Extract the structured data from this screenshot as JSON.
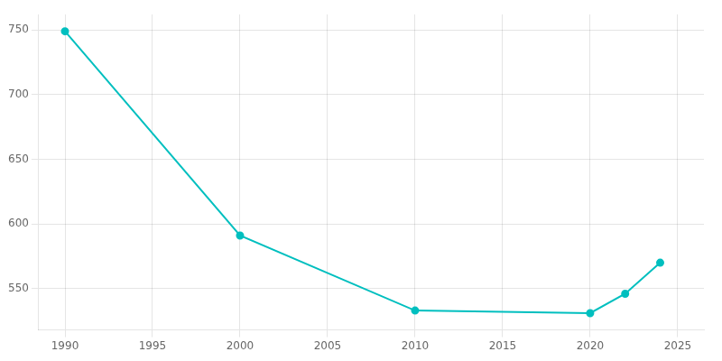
{
  "chart_data": {
    "type": "line",
    "x": [
      1990,
      2000,
      2010,
      2020,
      2022,
      2024
    ],
    "values": [
      749,
      591,
      533,
      531,
      546,
      570
    ],
    "color": "#00BFBF",
    "marker": "circle",
    "xlim": [
      1988.5,
      2026.5
    ],
    "ylim": [
      518,
      762
    ],
    "xticks": [
      1990,
      1995,
      2000,
      2005,
      2010,
      2015,
      2020,
      2025
    ],
    "yticks": [
      550,
      600,
      650,
      700,
      750
    ],
    "grid": true
  }
}
